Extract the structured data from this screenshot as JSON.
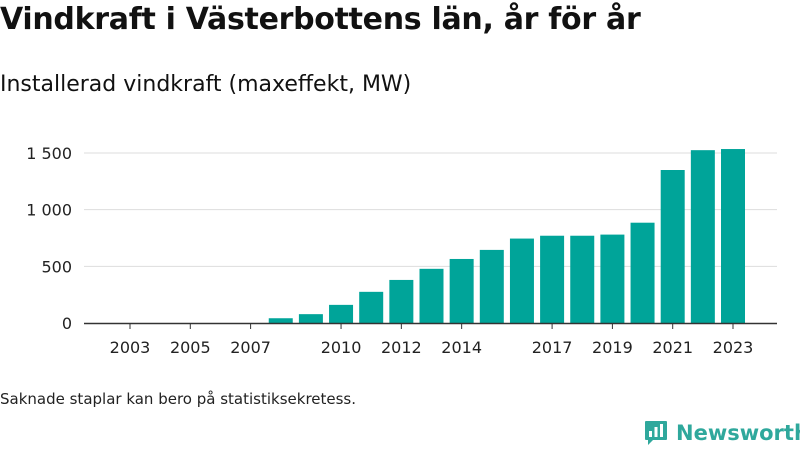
{
  "title": "Vindkraft i Västerbottens län, år för år",
  "subtitle": "Installerad vindkraft (maxeffekt, MW)",
  "footnote": "Saknade staplar kan bero på statistiksekretess.",
  "brand": {
    "name": "Newsworthy",
    "icon": "newsworthy-logo-icon"
  },
  "colors": {
    "bar": "#00a499",
    "grid": "#dddddd",
    "axis": "#333333",
    "text": "#222222",
    "brand": "#2fa89c"
  },
  "chart_data": {
    "type": "bar",
    "categories": [
      "2003",
      "2004",
      "2005",
      "2006",
      "2007",
      "2008",
      "2009",
      "2010",
      "2011",
      "2012",
      "2013",
      "2014",
      "2015",
      "2016",
      "2017",
      "2018",
      "2019",
      "2020",
      "2021",
      "2022",
      "2023"
    ],
    "values": [
      null,
      null,
      null,
      null,
      null,
      42,
      78,
      160,
      275,
      380,
      478,
      565,
      645,
      745,
      770,
      770,
      780,
      885,
      1350,
      1525,
      1535
    ],
    "x_tick_labels": [
      "2003",
      "2005",
      "2007",
      "2010",
      "2012",
      "2014",
      "2017",
      "2019",
      "2021",
      "2023"
    ],
    "y_ticks": [
      0,
      500,
      1000,
      1500
    ],
    "y_tick_labels": [
      "0",
      "500",
      "1 000",
      "1 500"
    ],
    "ylim": [
      0,
      1650
    ],
    "grid": true,
    "legend": "none"
  }
}
